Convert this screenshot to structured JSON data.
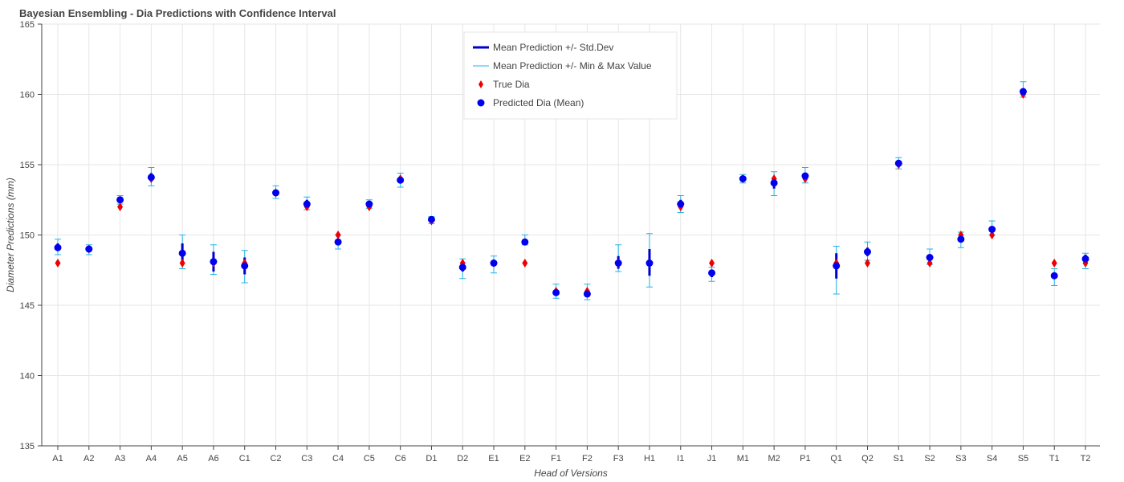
{
  "chart_data": {
    "type": "scatter",
    "title": "Bayesian Ensembling - Dia Predictions with Confidence Interval",
    "xlabel": "Head of Versions",
    "ylabel": "Diameter Predictions (mm)",
    "ylim": [
      135,
      165
    ],
    "yticks": [
      135,
      140,
      145,
      150,
      155,
      160,
      165
    ],
    "grid": true,
    "legend_position": "top-center",
    "legend": [
      {
        "label": "Mean Prediction +/- Std.Dev",
        "kind": "thick-line",
        "color": "#0000cc"
      },
      {
        "label": "Mean Prediction +/- Min & Max Value",
        "kind": "thin-line",
        "color": "#1fb3e8"
      },
      {
        "label": "True Dia",
        "kind": "diamond",
        "color": "#ee0000"
      },
      {
        "label": "Predicted Dia (Mean)",
        "kind": "circle",
        "color": "#0000ee"
      }
    ],
    "colors": {
      "std": "#0000cc",
      "minmax": "#1fb3e8",
      "true": "#ee0000",
      "pred": "#0000ee"
    },
    "categories": [
      "A1",
      "A2",
      "A3",
      "A4",
      "A5",
      "A6",
      "C1",
      "C2",
      "C3",
      "C4",
      "C5",
      "C6",
      "D1",
      "D2",
      "E1",
      "E2",
      "F1",
      "F2",
      "F3",
      "H1",
      "I1",
      "J1",
      "M1",
      "M2",
      "P1",
      "Q1",
      "Q2",
      "S1",
      "S2",
      "S3",
      "S4",
      "S5",
      "T1",
      "T2"
    ],
    "true_dia": [
      148,
      149,
      152,
      154,
      148,
      148,
      148,
      153,
      152,
      150,
      152,
      154,
      151,
      148,
      148,
      148,
      146,
      146,
      148,
      148,
      152,
      148,
      154,
      154,
      154,
      148,
      148,
      155,
      148,
      150,
      150,
      160,
      148,
      148
    ],
    "pred_mean": [
      149.1,
      149.0,
      152.5,
      154.1,
      148.7,
      148.1,
      147.8,
      153.0,
      152.2,
      149.5,
      152.2,
      153.9,
      151.1,
      147.7,
      148.0,
      149.5,
      145.9,
      145.8,
      148.0,
      148.0,
      152.2,
      147.3,
      154.0,
      153.7,
      154.2,
      147.8,
      148.8,
      155.1,
      148.4,
      149.7,
      150.4,
      160.2,
      147.1,
      148.3
    ],
    "std_low": [
      148.9,
      148.8,
      152.3,
      153.8,
      148.0,
      147.4,
      147.2,
      152.8,
      151.9,
      149.3,
      152.0,
      153.7,
      151.0,
      147.4,
      147.9,
      149.3,
      145.7,
      145.6,
      147.6,
      147.1,
      151.9,
      147.0,
      153.8,
      153.3,
      154.0,
      146.9,
      148.5,
      154.9,
      148.2,
      149.5,
      150.2,
      160.0,
      146.9,
      148.0
    ],
    "std_high": [
      149.4,
      149.2,
      152.7,
      154.4,
      149.4,
      148.8,
      148.4,
      153.2,
      152.5,
      149.7,
      152.4,
      154.1,
      151.2,
      148.0,
      148.2,
      149.7,
      146.1,
      146.0,
      148.5,
      149.0,
      152.5,
      147.5,
      154.2,
      154.1,
      154.4,
      148.7,
      149.1,
      155.3,
      148.6,
      149.9,
      150.6,
      160.4,
      147.3,
      148.6
    ],
    "min_val": [
      148.6,
      148.6,
      152.2,
      153.5,
      147.6,
      147.2,
      146.6,
      152.6,
      151.8,
      149.0,
      151.9,
      153.4,
      150.8,
      146.9,
      147.3,
      149.3,
      145.5,
      145.4,
      147.4,
      146.3,
      151.6,
      146.7,
      153.7,
      152.8,
      153.7,
      145.8,
      148.2,
      154.7,
      147.9,
      149.1,
      150.0,
      159.8,
      146.4,
      147.6
    ],
    "max_val": [
      149.7,
      149.3,
      152.8,
      154.8,
      150.0,
      149.3,
      148.9,
      153.5,
      152.7,
      150.0,
      152.5,
      154.4,
      151.3,
      148.3,
      148.5,
      150.0,
      146.5,
      146.5,
      149.3,
      150.1,
      152.8,
      147.7,
      154.3,
      154.5,
      154.8,
      149.2,
      149.5,
      155.5,
      149.0,
      150.2,
      151.0,
      160.9,
      147.6,
      148.7
    ]
  }
}
